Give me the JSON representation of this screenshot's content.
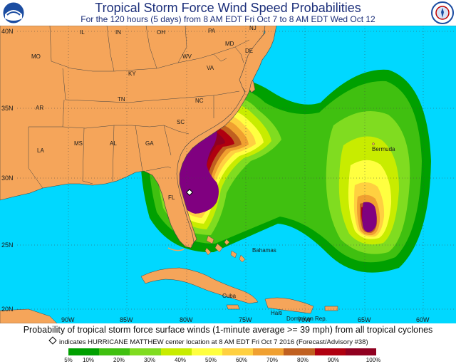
{
  "header": {
    "title": "Tropical Storm Force Wind Speed Probabilities",
    "subtitle": "For the 120 hours (5 days) from 8 AM EDT Fri Oct 7 to 8 AM EDT Wed Oct 12",
    "logo_left": "NOAA",
    "logo_right": "NATIONAL WEATHER SERVICE"
  },
  "map": {
    "latitude_labels": [
      "40N",
      "35N",
      "30N",
      "25N",
      "20N"
    ],
    "longitude_labels": [
      "90W",
      "85W",
      "80W",
      "75W",
      "70W",
      "65W",
      "60W"
    ],
    "state_labels": [
      "IL",
      "IN",
      "OH",
      "PA",
      "NJ",
      "MD",
      "DE",
      "MO",
      "KY",
      "WV",
      "VA",
      "AR",
      "TN",
      "NC",
      "SC",
      "MS",
      "AL",
      "GA",
      "LA",
      "FL"
    ],
    "place_labels": [
      "Bermuda",
      "Bahamas",
      "Cuba",
      "Haiti",
      "Dominican Rep."
    ],
    "storm_marker": "HURRICANE MATTHEW center location",
    "colors": {
      "land": "#f5a55a",
      "water": "#00d8ff",
      "borders": "#444444"
    }
  },
  "caption": "Probability of tropical storm force surface winds (1-minute average >= 39 mph) from all tropical cyclones",
  "marker_note": "indicates HURRICANE MATTHEW center location at 8 AM EDT Fri Oct 7 2016 (Forecast/Advisory #38)",
  "legend": {
    "labels": [
      "5%",
      "10%",
      "20%",
      "30%",
      "40%",
      "50%",
      "60%",
      "70%",
      "80%",
      "90%",
      "100%"
    ],
    "colors": [
      "#00a000",
      "#40c010",
      "#80dc20",
      "#c8ec00",
      "#ffff40",
      "#ffd040",
      "#f0a030",
      "#c06020",
      "#b00010",
      "#900020",
      "#800080"
    ]
  }
}
